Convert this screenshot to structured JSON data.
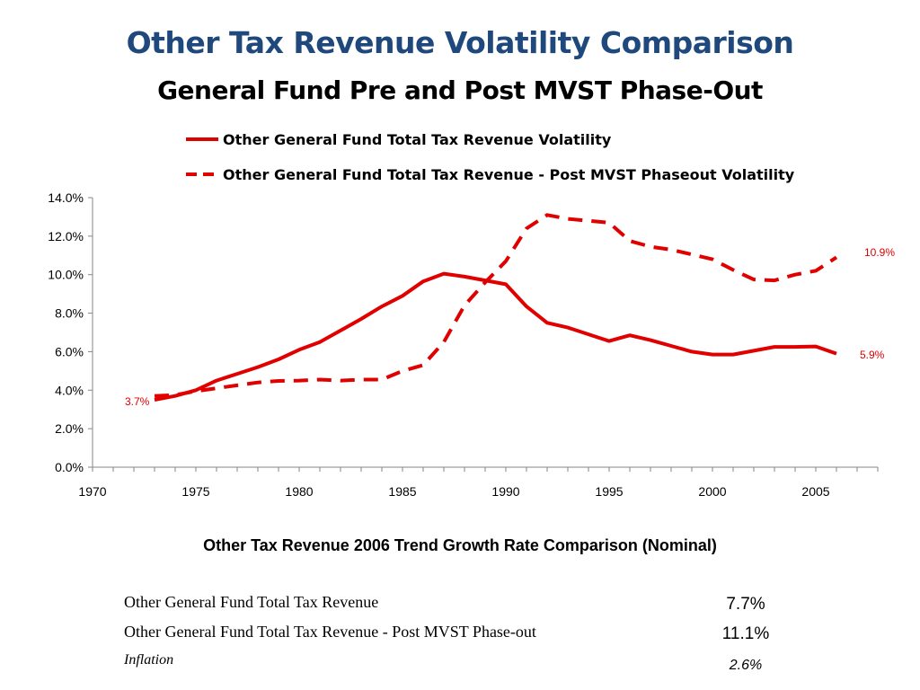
{
  "chart_data": {
    "type": "line",
    "title": "Other Tax Revenue Volatility Comparison",
    "subtitle": "General Fund Pre and Post MVST Phase-Out",
    "xlim": [
      1970,
      2008
    ],
    "ylim": [
      0,
      14
    ],
    "x_ticks": [
      "1970",
      "1975",
      "1980",
      "1985",
      "1990",
      "1995",
      "2000",
      "2005"
    ],
    "y_ticks": [
      "0.0%",
      "2.0%",
      "4.0%",
      "6.0%",
      "8.0%",
      "10.0%",
      "12.0%",
      "14.0%"
    ],
    "legend_position": "top",
    "series": [
      {
        "name": "Other General Fund Total Tax Revenue Volatility",
        "style": "solid",
        "color": "#E00000",
        "x": [
          1973,
          1974,
          1975,
          1976,
          1977,
          1978,
          1979,
          1980,
          1981,
          1982,
          1983,
          1984,
          1985,
          1986,
          1987,
          1988,
          1989,
          1990,
          1991,
          1992,
          1993,
          1994,
          1995,
          1996,
          1997,
          1998,
          1999,
          2000,
          2001,
          2002,
          2003,
          2004,
          2005,
          2006
        ],
        "y": [
          3.5,
          3.7,
          4.0,
          4.5,
          4.85,
          5.2,
          5.6,
          6.1,
          6.5,
          7.1,
          7.7,
          8.35,
          8.9,
          9.65,
          10.05,
          9.9,
          9.7,
          9.5,
          8.35,
          7.5,
          7.25,
          6.9,
          6.55,
          6.85,
          6.6,
          6.3,
          6.0,
          5.85,
          5.85,
          6.05,
          6.25,
          6.25,
          6.27,
          5.9
        ]
      },
      {
        "name": "Other General Fund Total Tax Revenue - Post MVST Phaseout Volatility",
        "style": "dashed",
        "color": "#E00000",
        "x": [
          1973,
          1974,
          1975,
          1976,
          1977,
          1978,
          1979,
          1980,
          1981,
          1982,
          1983,
          1984,
          1985,
          1986,
          1987,
          1988,
          1989,
          1990,
          1991,
          1992,
          1993,
          1994,
          1995,
          1996,
          1997,
          1998,
          1999,
          2000,
          2001,
          2002,
          2003,
          2004,
          2005,
          2006
        ],
        "y": [
          3.7,
          3.75,
          3.95,
          4.1,
          4.25,
          4.4,
          4.48,
          4.5,
          4.55,
          4.5,
          4.55,
          4.55,
          5.0,
          5.3,
          6.5,
          8.4,
          9.6,
          10.7,
          12.4,
          13.1,
          12.9,
          12.8,
          12.7,
          11.75,
          11.45,
          11.3,
          11.05,
          10.8,
          10.25,
          9.75,
          9.7,
          10.0,
          10.2,
          10.9
        ]
      }
    ],
    "annotations": [
      "3.7%",
      "10.9%",
      "5.9%"
    ]
  },
  "growth_table": {
    "heading": "Other Tax Revenue 2006 Trend Growth Rate Comparison (Nominal)",
    "rows": [
      {
        "label": "Other General Fund Total Tax Revenue",
        "value": "7.7%"
      },
      {
        "label": "Other General Fund Total Tax Revenue - Post MVST Phase-out",
        "value": "11.1%"
      },
      {
        "label": "Inflation",
        "value": "2.6%"
      }
    ]
  }
}
